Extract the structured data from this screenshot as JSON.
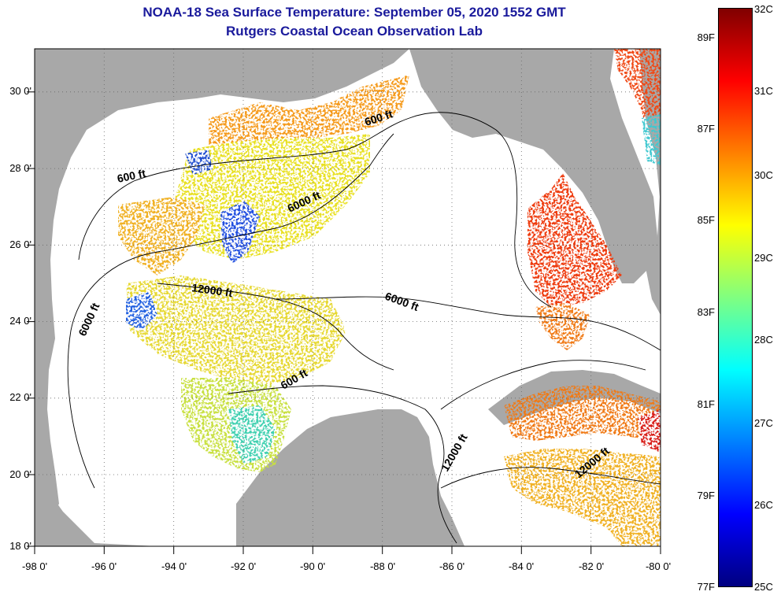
{
  "title": {
    "line1": "NOAA-18 Sea Surface Temperature:  September 05, 2020 1552 GMT",
    "line2": "Rutgers Coastal Ocean Observation Lab"
  },
  "x_axis": {
    "tick_labels": [
      "-98 0'",
      "-96 0'",
      "-94 0'",
      "-92 0'",
      "-90 0'",
      "-88 0'",
      "-86 0'",
      "-84 0'",
      "-82 0'",
      "-80 0'"
    ],
    "range": [
      -98,
      -80
    ]
  },
  "y_axis": {
    "tick_labels": [
      "30 0'",
      "28 0'",
      "26 0'",
      "24 0'",
      "22 0'",
      "20 0'",
      "18 0'"
    ],
    "range": [
      18,
      31
    ]
  },
  "colorbar": {
    "celsius_labels": [
      "32C",
      "31C",
      "30C",
      "29C",
      "28C",
      "27C",
      "26C",
      "25C"
    ],
    "fahrenheit_labels": [
      "89F",
      "87F",
      "85F",
      "83F",
      "81F",
      "79F",
      "77F"
    ],
    "colors": [
      "#800000",
      "#ff0000",
      "#ff8000",
      "#ffff00",
      "#80ff80",
      "#00ffff",
      "#0080ff",
      "#0000ff",
      "#000080"
    ]
  },
  "contour_labels": [
    "600 ft",
    "600 ft",
    "6000 ft",
    "12000 ft",
    "6000 ft",
    "6000 ft",
    "600 ft",
    "12000 ft",
    "12000 ft"
  ],
  "colors": {
    "land": "#a8a8a8",
    "title": "#1a1a9c",
    "ocean_nodata": "#ffffff"
  }
}
